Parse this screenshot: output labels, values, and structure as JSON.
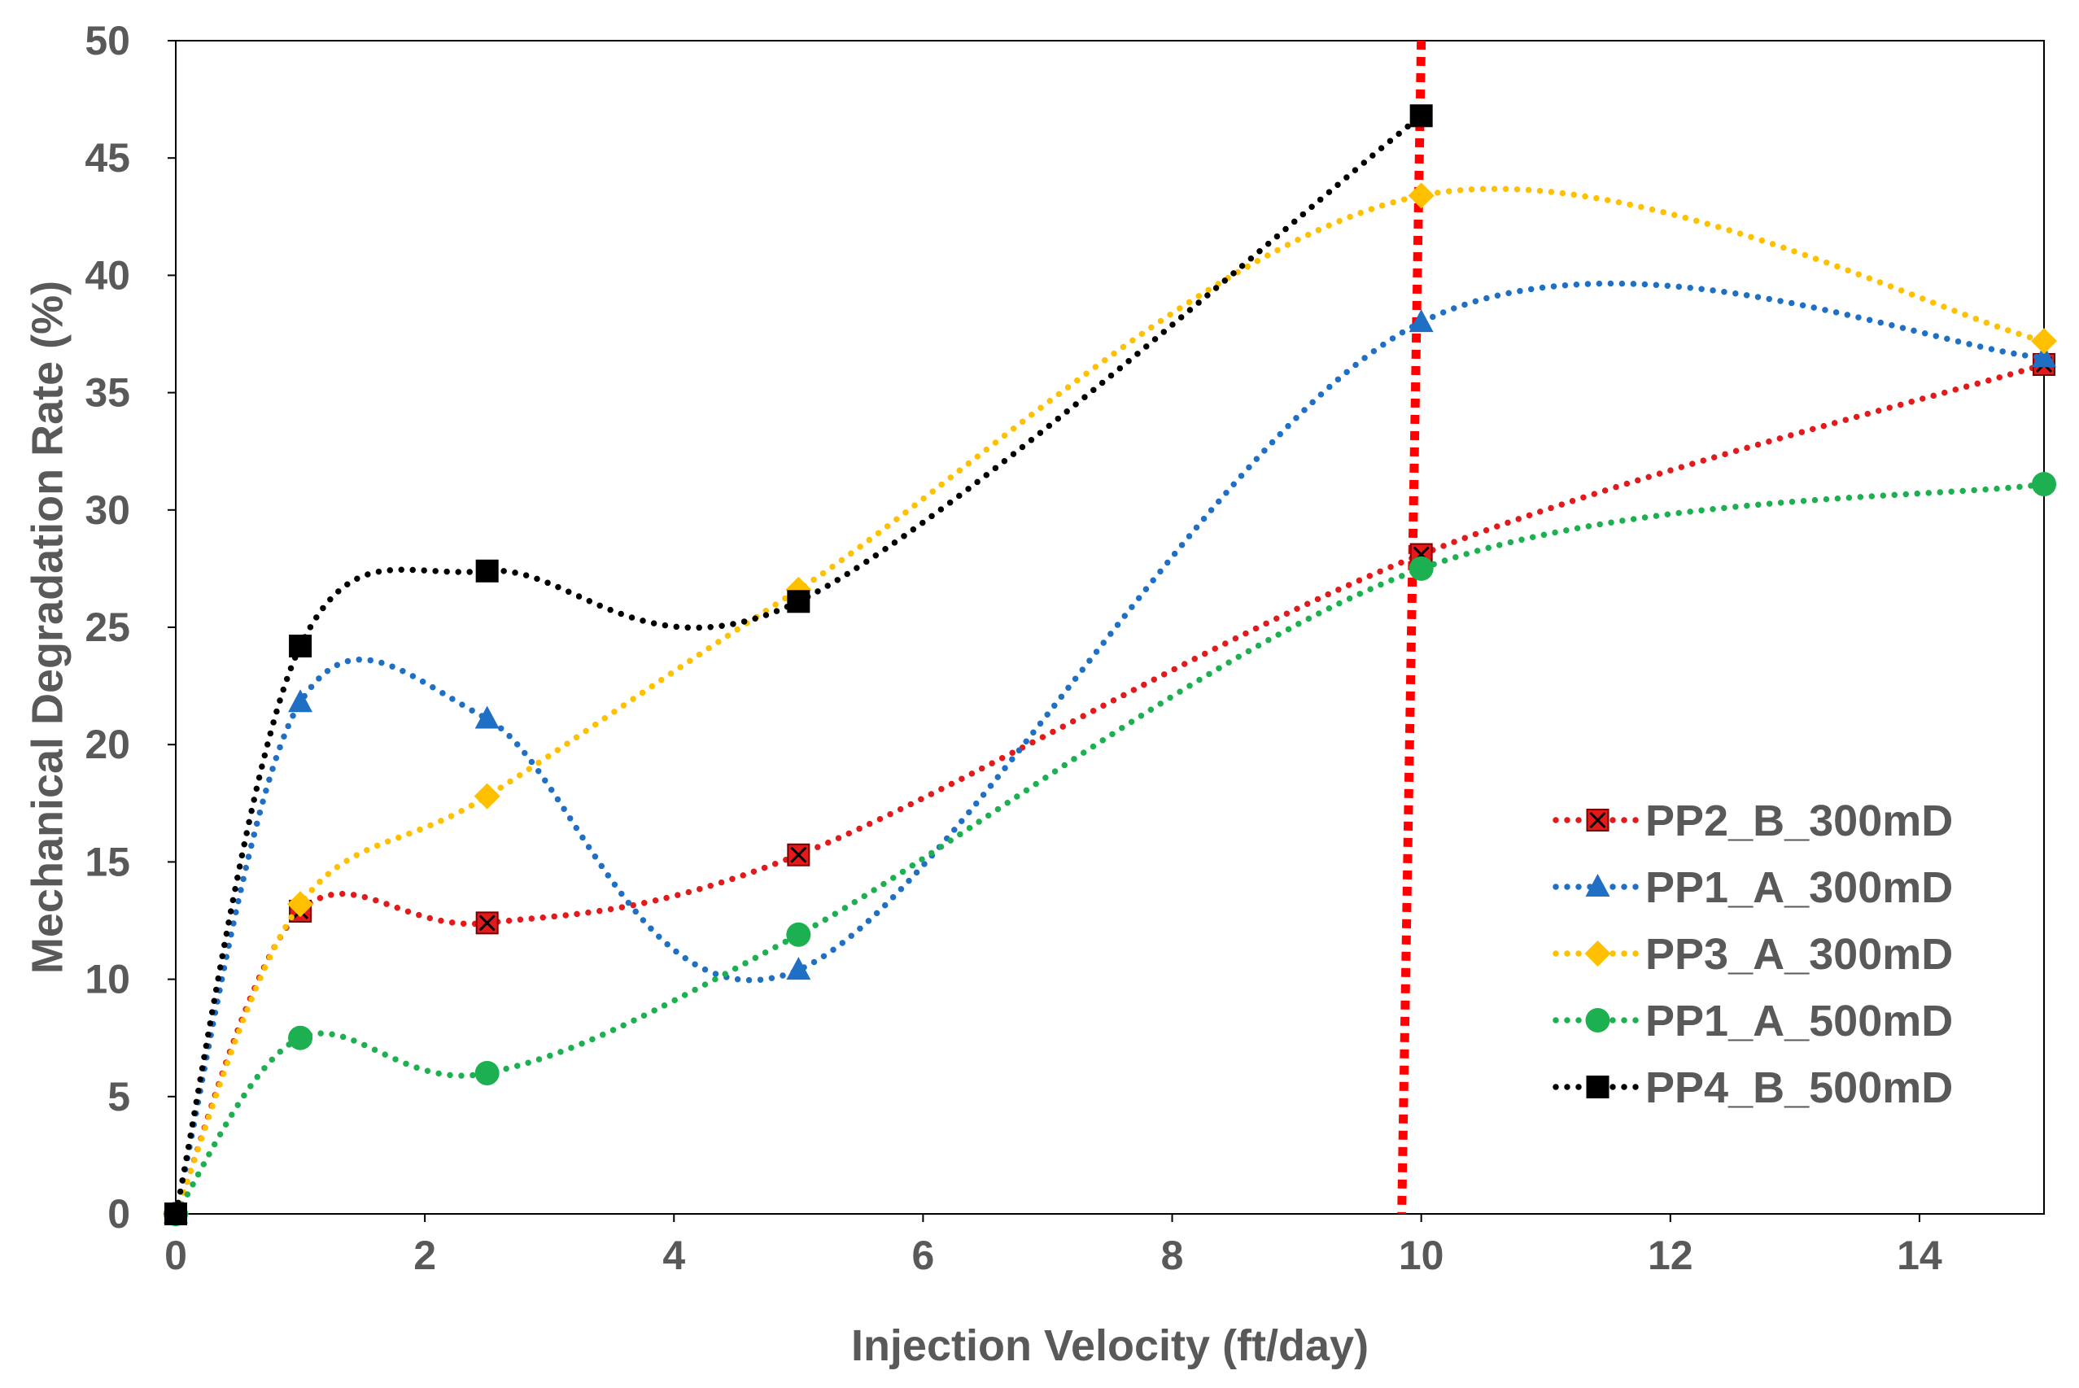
{
  "chart_data": {
    "type": "scatter",
    "xlabel": "Injection Velocity (ft/day)",
    "ylabel": "Mechanical Degradation Rate (%)",
    "xlim": [
      0,
      15
    ],
    "ylim": [
      0,
      50
    ],
    "x_ticks": [
      0,
      2,
      4,
      6,
      8,
      10,
      12,
      14
    ],
    "y_ticks": [
      0,
      5,
      10,
      15,
      20,
      25,
      30,
      35,
      40,
      45,
      50
    ],
    "grid": false,
    "legend_position": "right",
    "line_style": "dotted smoothed",
    "vertical_line": {
      "x": 10,
      "color": "#FF0000",
      "style": "dotted"
    },
    "series": [
      {
        "name": "PP2_B_300mD",
        "color": "#E31A1C",
        "marker": "square-x",
        "x": [
          0,
          1,
          2.5,
          5,
          10,
          15
        ],
        "y": [
          0,
          12.9,
          12.4,
          15.3,
          28.1,
          36.2
        ]
      },
      {
        "name": "PP1_A_300mD",
        "color": "#1F6FC5",
        "marker": "triangle",
        "x": [
          0,
          1,
          2.5,
          5,
          10,
          15
        ],
        "y": [
          0,
          21.8,
          21.1,
          10.4,
          38.0,
          36.5
        ]
      },
      {
        "name": "PP3_A_300mD",
        "color": "#FFC000",
        "marker": "diamond",
        "x": [
          0,
          1,
          2.5,
          5,
          10,
          15
        ],
        "y": [
          0,
          13.2,
          17.8,
          26.6,
          43.4,
          37.2
        ]
      },
      {
        "name": "PP1_A_500mD",
        "color": "#1CB050",
        "marker": "circle",
        "x": [
          0,
          1,
          2.5,
          5,
          10,
          15
        ],
        "y": [
          0,
          7.5,
          6.0,
          11.9,
          27.5,
          31.1
        ]
      },
      {
        "name": "PP4_B_500mD",
        "color": "#000000",
        "marker": "square",
        "x": [
          0,
          1,
          2.5,
          5,
          10
        ],
        "y": [
          0,
          24.2,
          27.4,
          26.1,
          46.8
        ]
      }
    ]
  }
}
